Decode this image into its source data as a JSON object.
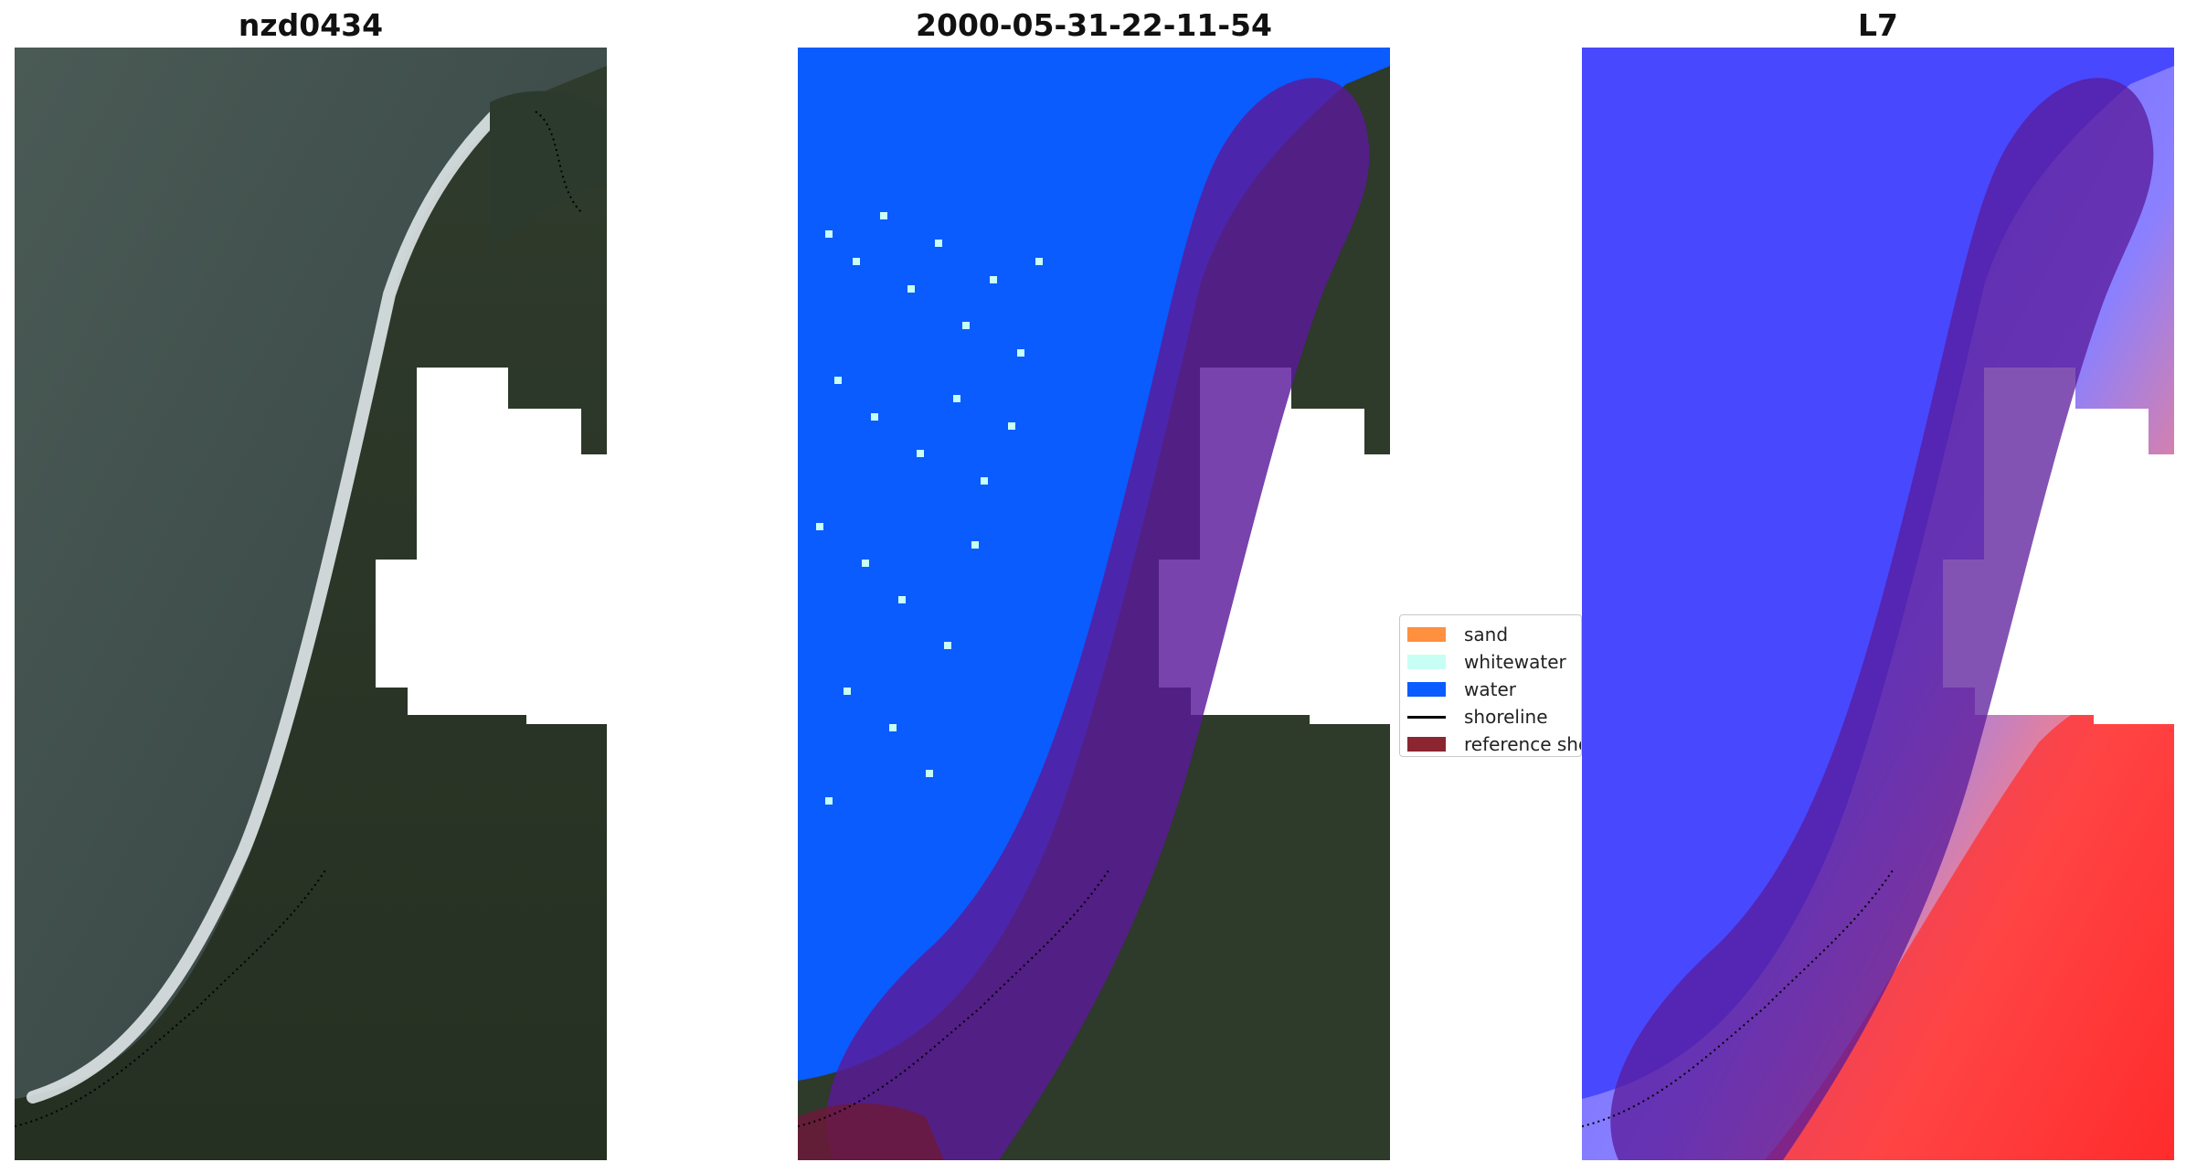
{
  "titles": {
    "left": "nzd0434",
    "middle": "2000-05-31-22-11-54",
    "right": "L7"
  },
  "legend": {
    "items": [
      {
        "label": "sand",
        "color": "#ff9040"
      },
      {
        "label": "whitewater",
        "color": "#c8fff4"
      },
      {
        "label": "water",
        "color": "#0a5cff"
      },
      {
        "label": "shoreline",
        "color": "#000000"
      },
      {
        "label": "reference shoreline buffer",
        "color": "#8b2630"
      }
    ]
  },
  "colors": {
    "buffer_overlay": "#5a1a9a",
    "sea_rgb": "#3a4a48",
    "land_rgb": "#2e3a2a",
    "classified_water": "#0a5cff",
    "index_negative": "#3a3aff",
    "index_positive": "#ff2020"
  }
}
